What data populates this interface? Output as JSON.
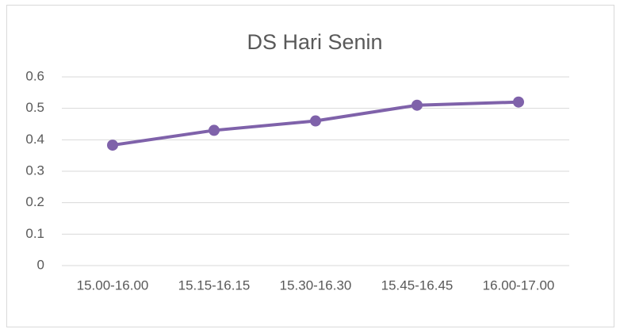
{
  "chart_data": {
    "type": "line",
    "title": "DS Hari Senin",
    "categories": [
      "15.00-16.00",
      "15.15-16.15",
      "15.30-16.30",
      "15.45-16.45",
      "16.00-17.00"
    ],
    "values": [
      0.383,
      0.43,
      0.46,
      0.51,
      0.52
    ],
    "color": "#7f62aa",
    "ylim": [
      0,
      0.6
    ],
    "yticks": [
      0,
      0.1,
      0.2,
      0.3,
      0.4,
      0.5,
      0.6
    ],
    "grid": true
  }
}
